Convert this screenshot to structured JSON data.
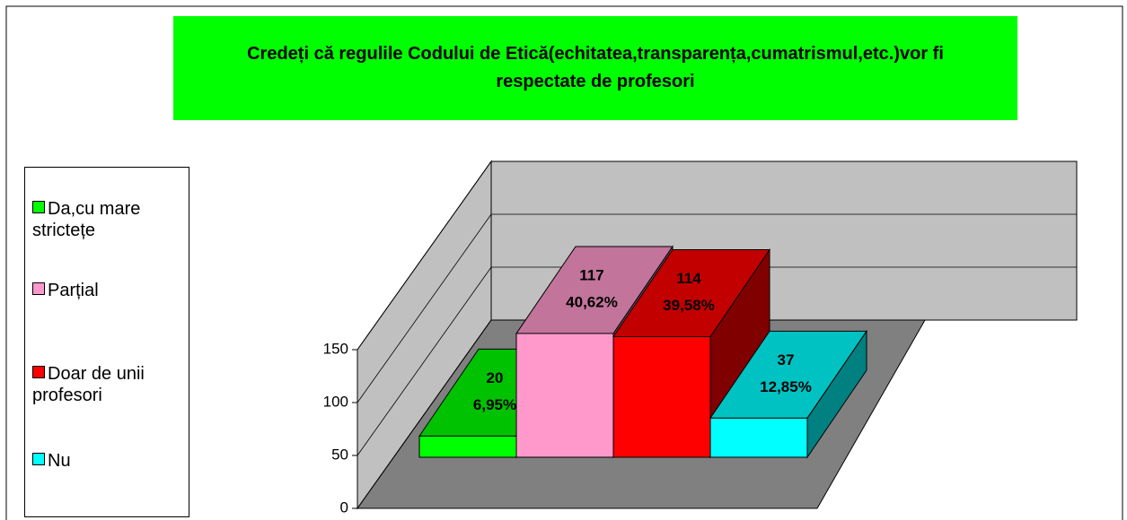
{
  "chart_data": {
    "type": "bar3d",
    "title": "Credeți că regulile Codului de Etică(echitatea,transparența,cumatrismul,etc.)vor fi respectate de profesori",
    "categories": [
      "Da,cu mare strictețe",
      "Parțial",
      "Doar de unii profesori",
      "Nu"
    ],
    "values": [
      20,
      117,
      114,
      37
    ],
    "percentages": [
      {
        "value": 6.95,
        "label": "6,95%"
      },
      {
        "value": 40.62,
        "label": "40,62%"
      },
      {
        "value": 39.58,
        "label": "39,58%"
      },
      {
        "value": 12.85,
        "label": "12,85%"
      }
    ],
    "colors": [
      "#00ff00",
      "#ff99cc",
      "#ff0000",
      "#00ffff"
    ],
    "title_background": "#00ff00",
    "ylim": [
      0,
      150
    ],
    "yticks": [
      0,
      50,
      100,
      150
    ],
    "grid": true,
    "legend": "left"
  }
}
